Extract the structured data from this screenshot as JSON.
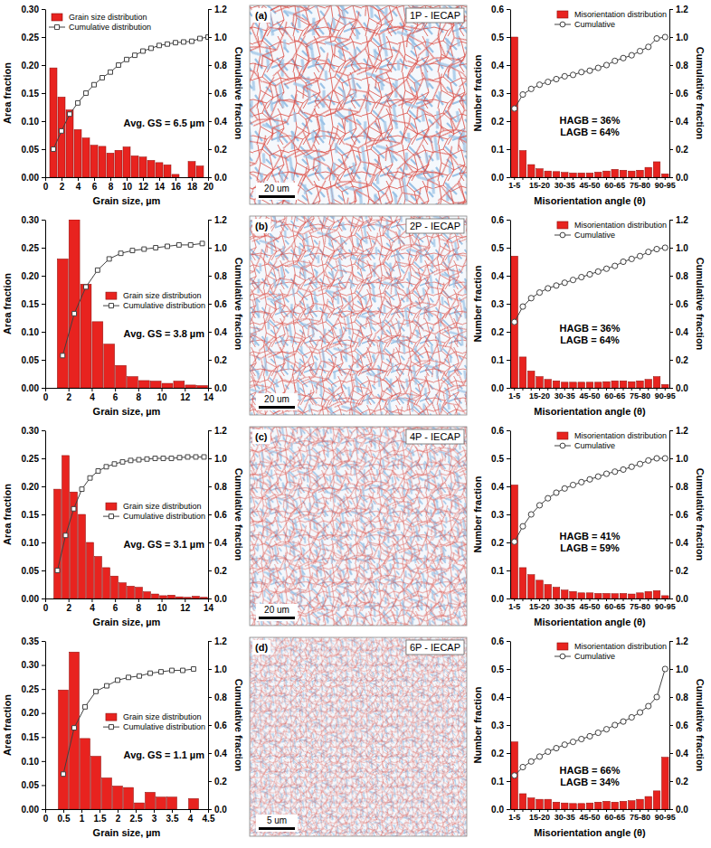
{
  "chart_data": [
    {
      "type": "histogram",
      "xlabel": "Grain size, µm",
      "ylabel": "Area fraction",
      "y2label": "Cumulative fraction",
      "xlim": [
        0,
        20
      ],
      "xticks": [
        0,
        2,
        4,
        6,
        8,
        10,
        12,
        14,
        16,
        18,
        20
      ],
      "ylim": [
        0,
        0.3
      ],
      "yticks": [
        {
          "value": 0,
          "label": "0.00"
        },
        0.05,
        {
          "value": 0.1,
          "label": "0.10"
        },
        0.15,
        {
          "value": 0.2,
          "label": "0.20"
        },
        0.25,
        {
          "value": 0.3,
          "label": "0.30"
        }
      ],
      "y2lim": [
        0,
        1.2
      ],
      "y2ticks": [
        {
          "value": 0,
          "label": "0.0"
        },
        0.2,
        0.4,
        0.6,
        0.8,
        {
          "value": 1,
          "label": "1.0"
        },
        1.2
      ],
      "bins": [
        0.5,
        1.5,
        2.5,
        3.5,
        4.5,
        5.5,
        6.5,
        7.5,
        8.5,
        9.5,
        10.5,
        11.5,
        12.5,
        13.5,
        14.5,
        15.5,
        16.5,
        17.5,
        18.5,
        19.5
      ],
      "series": [
        {
          "name": "Grain size distribution",
          "type": "bar",
          "color": "#e8231f",
          "values": [
            0.195,
            0.143,
            0.12,
            0.085,
            0.07,
            0.057,
            0.055,
            0.043,
            0.048,
            0.054,
            0.038,
            0.036,
            0.03,
            0.026,
            0.022,
            0.005,
            0,
            0.028,
            0.02
          ]
        },
        {
          "name": "Cumulative distribution",
          "type": "line",
          "axis": "y2",
          "marker": "square",
          "color": "#404040",
          "x": [
            1,
            2,
            3,
            4,
            5,
            6,
            7,
            8,
            9,
            10,
            11,
            12,
            13,
            14,
            15,
            16,
            17,
            18,
            19,
            20
          ],
          "values": [
            0.2,
            0.33,
            0.45,
            0.53,
            0.6,
            0.66,
            0.71,
            0.75,
            0.8,
            0.84,
            0.87,
            0.9,
            0.92,
            0.94,
            0.95,
            0.96,
            0.965,
            0.97,
            0.99,
            1.0
          ]
        }
      ],
      "annotations": [
        "Avg. GS = 6.5 µm"
      ],
      "legend": "upper left"
    },
    {
      "type": "image",
      "panel_label": "(a)",
      "title": "1P - IECAP",
      "scale_bar": "20 um"
    },
    {
      "type": "bar",
      "xlabel": "Misorientation angle (θ)",
      "ylabel": "Number fraction",
      "y2label": "Cumulative fraction",
      "categories": [
        "1-5",
        null,
        null,
        "15-20",
        null,
        null,
        "30-35",
        null,
        null,
        "45-50",
        null,
        null,
        "60-65",
        null,
        null,
        "75-80",
        null,
        null,
        "90-95"
      ],
      "ylim": [
        0,
        0.6
      ],
      "yticks": [
        {
          "value": 0,
          "label": "0.0"
        },
        0.1,
        0.2,
        0.3,
        0.4,
        0.5,
        0.6
      ],
      "y2lim": [
        0,
        1.2
      ],
      "y2ticks": [
        {
          "value": 0,
          "label": "0.0"
        },
        0.2,
        0.4,
        0.6,
        0.8,
        {
          "value": 1,
          "label": "1.0"
        },
        1.2
      ],
      "series": [
        {
          "name": "Misorientation distribution",
          "type": "bar",
          "color": "#e8231f",
          "values": [
            0.5,
            0.095,
            0.045,
            0.03,
            0.022,
            0.02,
            0.017,
            0.015,
            0.015,
            0.015,
            0.018,
            0.022,
            0.028,
            0.025,
            0.022,
            0.025,
            0.035,
            0.055,
            0.012
          ]
        },
        {
          "name": "Cumulative",
          "type": "line",
          "axis": "y2",
          "marker": "circle",
          "color": "#404040",
          "values": [
            0.49,
            0.59,
            0.63,
            0.66,
            0.68,
            0.7,
            0.72,
            0.73,
            0.75,
            0.76,
            0.78,
            0.8,
            0.83,
            0.85,
            0.87,
            0.9,
            0.93,
            0.99,
            1.0
          ]
        }
      ],
      "annotations": [
        "HAGB = 36%",
        "LAGB = 64%"
      ],
      "legend": "upper right"
    },
    {
      "type": "histogram",
      "xlabel": "Grain size, µm",
      "ylabel": "Area fraction",
      "y2label": "Cumulative fraction",
      "xlim": [
        0,
        14
      ],
      "xticks": [
        0,
        2,
        4,
        6,
        8,
        10,
        12,
        14
      ],
      "ylim": [
        0,
        0.3
      ],
      "yticks": [
        {
          "value": 0,
          "label": "0.00"
        },
        0.05,
        {
          "value": 0.1,
          "label": "0.10"
        },
        0.15,
        {
          "value": 0.2,
          "label": "0.20"
        },
        0.25,
        {
          "value": 0.3,
          "label": "0.30"
        }
      ],
      "y2lim": [
        0,
        1.2
      ],
      "y2ticks": [
        {
          "value": 0,
          "label": "0.0"
        },
        0.2,
        0.4,
        0.6,
        0.8,
        {
          "value": 1,
          "label": "1.0"
        },
        1.2
      ],
      "bins": [
        1,
        2,
        3,
        4,
        5,
        6,
        7,
        8,
        9,
        10,
        11,
        12,
        13,
        14
      ],
      "series": [
        {
          "name": "Grain size distribution",
          "type": "bar",
          "color": "#e8231f",
          "values": [
            0.23,
            0.3,
            0.185,
            0.118,
            0.078,
            0.04,
            0.02,
            0.013,
            0.012,
            0.008,
            0.012,
            0.005,
            0.004
          ]
        },
        {
          "name": "Cumulative distribution",
          "type": "line",
          "axis": "y2",
          "marker": "square",
          "color": "#404040",
          "x": [
            1.5,
            2.5,
            3.5,
            4.5,
            5.5,
            6.5,
            7.5,
            8.5,
            9.5,
            10.5,
            11.5,
            12.5,
            13.5
          ],
          "values": [
            0.23,
            0.53,
            0.72,
            0.84,
            0.92,
            0.96,
            0.98,
            0.99,
            1.0,
            1.01,
            1.02,
            1.02,
            1.03
          ]
        }
      ],
      "annotations": [
        "Avg. GS = 3.8 µm"
      ],
      "legend": "center right"
    },
    {
      "type": "image",
      "panel_label": "(b)",
      "title": "2P - IECAP",
      "scale_bar": "20 um"
    },
    {
      "type": "bar",
      "xlabel": "Misorientation angle (θ)",
      "ylabel": "Number fraction",
      "y2label": "Cumulative fraction",
      "categories": [
        "1-5",
        null,
        null,
        "15-20",
        null,
        null,
        "30-35",
        null,
        null,
        "45-50",
        null,
        null,
        "60-65",
        null,
        null,
        "75-80",
        null,
        null,
        "90-95"
      ],
      "ylim": [
        0,
        0.6
      ],
      "yticks": [
        {
          "value": 0,
          "label": "0.0"
        },
        0.1,
        0.2,
        0.3,
        0.4,
        0.5,
        0.6
      ],
      "y2lim": [
        0,
        1.2
      ],
      "y2ticks": [
        {
          "value": 0,
          "label": "0.0"
        },
        0.2,
        0.4,
        0.6,
        0.8,
        {
          "value": 1,
          "label": "1.0"
        },
        1.2
      ],
      "series": [
        {
          "name": "Misorientation distribution",
          "type": "bar",
          "color": "#e8231f",
          "values": [
            0.47,
            0.11,
            0.06,
            0.04,
            0.03,
            0.025,
            0.02,
            0.02,
            0.02,
            0.02,
            0.02,
            0.022,
            0.025,
            0.025,
            0.022,
            0.025,
            0.03,
            0.04,
            0.012
          ]
        },
        {
          "name": "Cumulative",
          "type": "line",
          "axis": "y2",
          "marker": "circle",
          "color": "#404040",
          "values": [
            0.47,
            0.58,
            0.64,
            0.68,
            0.71,
            0.73,
            0.75,
            0.77,
            0.79,
            0.81,
            0.83,
            0.85,
            0.87,
            0.9,
            0.92,
            0.94,
            0.97,
            0.99,
            1.0
          ]
        }
      ],
      "annotations": [
        "HAGB = 36%",
        "LAGB = 64%"
      ],
      "legend": "upper right"
    },
    {
      "type": "histogram",
      "xlabel": "Grain size, µm",
      "ylabel": "Area fraction",
      "y2label": "Cumulative fraction",
      "xlim": [
        0,
        14
      ],
      "xticks": [
        0,
        2,
        4,
        6,
        8,
        10,
        12,
        14
      ],
      "ylim": [
        0,
        0.3
      ],
      "yticks": [
        {
          "value": 0,
          "label": "0.00"
        },
        0.05,
        {
          "value": 0.1,
          "label": "0.10"
        },
        0.15,
        {
          "value": 0.2,
          "label": "0.20"
        },
        0.25,
        {
          "value": 0.3,
          "label": "0.30"
        }
      ],
      "y2lim": [
        0,
        1.2
      ],
      "y2ticks": [
        {
          "value": 0,
          "label": "0.0"
        },
        0.2,
        0.4,
        0.6,
        0.8,
        {
          "value": 1,
          "label": "1.0"
        },
        1.2
      ],
      "bins": [
        0.7,
        1.4,
        2.1,
        2.8,
        3.5,
        4.2,
        4.9,
        5.6,
        6.3,
        7,
        7.7,
        8.4,
        9.1,
        9.8,
        10.5,
        11.2,
        11.9,
        12.6,
        13.3,
        14
      ],
      "series": [
        {
          "name": "Grain size distribution",
          "type": "bar",
          "color": "#e8231f",
          "values": [
            0.195,
            0.255,
            0.19,
            0.15,
            0.1,
            0.075,
            0.055,
            0.04,
            0.028,
            0.022,
            0.02,
            0.012,
            0.008,
            0.005,
            0.006,
            0.003,
            0.002,
            0.004,
            0.002
          ]
        },
        {
          "name": "Cumulative distribution",
          "type": "line",
          "axis": "y2",
          "marker": "square",
          "color": "#404040",
          "x": [
            1.05,
            1.75,
            2.45,
            3.15,
            3.85,
            4.55,
            5.25,
            5.95,
            6.65,
            7.35,
            8.05,
            8.75,
            9.45,
            10.15,
            10.85,
            11.55,
            12.25,
            12.95,
            13.65
          ],
          "values": [
            0.2,
            0.45,
            0.64,
            0.78,
            0.86,
            0.91,
            0.94,
            0.96,
            0.975,
            0.985,
            0.99,
            0.995,
            1.0,
            1.0,
            1.0,
            1.005,
            1.01,
            1.01,
            1.01
          ]
        }
      ],
      "annotations": [
        "Avg. GS = 3.1 µm"
      ],
      "legend": "center right"
    },
    {
      "type": "image",
      "panel_label": "(c)",
      "title": "4P - IECAP",
      "scale_bar": "20 um"
    },
    {
      "type": "bar",
      "xlabel": "Misorientation angle (θ)",
      "ylabel": "Number fraction",
      "y2label": "Cumulative fraction",
      "categories": [
        "1-5",
        null,
        null,
        "15-20",
        null,
        null,
        "30-35",
        null,
        null,
        "45-50",
        null,
        null,
        "60-65",
        null,
        null,
        "75-80",
        null,
        null,
        "90-95"
      ],
      "ylim": [
        0,
        0.6
      ],
      "yticks": [
        {
          "value": 0,
          "label": "0.0"
        },
        0.1,
        0.2,
        0.3,
        0.4,
        0.5,
        0.6
      ],
      "y2lim": [
        0,
        1.2
      ],
      "y2ticks": [
        {
          "value": 0,
          "label": "0.0"
        },
        0.2,
        0.4,
        0.6,
        0.8,
        {
          "value": 1,
          "label": "1.0"
        },
        1.2
      ],
      "series": [
        {
          "name": "Misorientation distribution",
          "type": "bar",
          "color": "#e8231f",
          "values": [
            0.405,
            0.11,
            0.085,
            0.065,
            0.05,
            0.04,
            0.03,
            0.025,
            0.02,
            0.02,
            0.018,
            0.018,
            0.017,
            0.018,
            0.016,
            0.02,
            0.025,
            0.028,
            0.01
          ]
        },
        {
          "name": "Cumulative",
          "type": "line",
          "axis": "y2",
          "marker": "circle",
          "color": "#404040",
          "values": [
            0.405,
            0.515,
            0.6,
            0.665,
            0.715,
            0.755,
            0.785,
            0.81,
            0.83,
            0.85,
            0.87,
            0.89,
            0.905,
            0.92,
            0.94,
            0.96,
            0.985,
            1.0,
            1.0
          ]
        }
      ],
      "annotations": [
        "HAGB = 41%",
        "LAGB = 59%"
      ],
      "legend": "upper right"
    },
    {
      "type": "histogram",
      "xlabel": "Grain size, µm",
      "ylabel": "Area fraction",
      "y2label": "Cumulative fraction",
      "xlim": [
        0,
        4.5
      ],
      "xticks": [
        0,
        0.5,
        1,
        1.5,
        2,
        2.5,
        3,
        3.5,
        4,
        4.5
      ],
      "ylim": [
        0,
        0.35
      ],
      "yticks": [
        {
          "value": 0,
          "label": "0.00"
        },
        0.05,
        {
          "value": 0.1,
          "label": "0.10"
        },
        0.15,
        {
          "value": 0.2,
          "label": "0.20"
        },
        0.25,
        {
          "value": 0.3,
          "label": "0.30"
        },
        0.35
      ],
      "y2lim": [
        0,
        1.2
      ],
      "y2ticks": [
        {
          "value": 0,
          "label": "0.0"
        },
        0.2,
        0.4,
        0.6,
        0.8,
        {
          "value": 1,
          "label": "1.0"
        },
        1.2
      ],
      "bins": [
        0.35,
        0.65,
        0.95,
        1.25,
        1.55,
        1.85,
        2.15,
        2.45,
        2.75,
        3.05,
        3.35,
        3.65,
        3.95,
        4.25
      ],
      "series": [
        {
          "name": "Grain size distribution",
          "type": "bar",
          "color": "#e8231f",
          "values": [
            0.248,
            0.327,
            0.147,
            0.11,
            0.065,
            0.048,
            0.045,
            0.013,
            0.035,
            0.025,
            0.025,
            0,
            0.022
          ]
        },
        {
          "name": "Cumulative distribution",
          "type": "line",
          "axis": "y2",
          "marker": "square",
          "color": "#404040",
          "x": [
            0.5,
            0.8,
            1.1,
            1.4,
            1.7,
            2.0,
            2.3,
            2.6,
            2.9,
            3.2,
            3.5,
            3.8,
            4.1
          ],
          "values": [
            0.25,
            0.58,
            0.73,
            0.84,
            0.88,
            0.92,
            0.94,
            0.95,
            0.97,
            0.98,
            0.99,
            0.99,
            1.0
          ]
        }
      ],
      "annotations": [
        "Avg. GS = 1.1 µm"
      ],
      "legend": "center right"
    },
    {
      "type": "image",
      "panel_label": "(d)",
      "title": "6P - IECAP",
      "scale_bar": "5 um"
    },
    {
      "type": "bar",
      "xlabel": "Misorientation angle (θ)",
      "ylabel": "Number fraction",
      "y2label": "Cumulative fraction",
      "categories": [
        "1-5",
        null,
        null,
        "15-20",
        null,
        null,
        "30-35",
        null,
        null,
        "45-50",
        null,
        null,
        "60-65",
        null,
        null,
        "75-80",
        null,
        null,
        "90-95"
      ],
      "ylim": [
        0,
        0.6
      ],
      "yticks": [
        {
          "value": 0,
          "label": "0.0"
        },
        0.1,
        0.2,
        0.3,
        0.4,
        0.5,
        0.6
      ],
      "y2lim": [
        0,
        1.2
      ],
      "y2ticks": [
        {
          "value": 0,
          "label": "0.0"
        },
        0.2,
        0.4,
        0.6,
        0.8,
        {
          "value": 1,
          "label": "1.0"
        },
        1.2
      ],
      "series": [
        {
          "name": "Misorientation distribution",
          "type": "bar",
          "color": "#e8231f",
          "values": [
            0.24,
            0.055,
            0.04,
            0.035,
            0.035,
            0.025,
            0.022,
            0.02,
            0.02,
            0.022,
            0.025,
            0.028,
            0.025,
            0.028,
            0.03,
            0.035,
            0.045,
            0.065,
            0.185
          ]
        },
        {
          "name": "Cumulative",
          "type": "line",
          "axis": "y2",
          "marker": "circle",
          "color": "#404040",
          "values": [
            0.24,
            0.3,
            0.34,
            0.375,
            0.41,
            0.435,
            0.46,
            0.48,
            0.5,
            0.52,
            0.545,
            0.57,
            0.6,
            0.625,
            0.655,
            0.69,
            0.735,
            0.8,
            1.0
          ]
        }
      ],
      "annotations": [
        "HAGB = 66%",
        "LAGB = 34%"
      ],
      "legend": "upper right"
    }
  ]
}
